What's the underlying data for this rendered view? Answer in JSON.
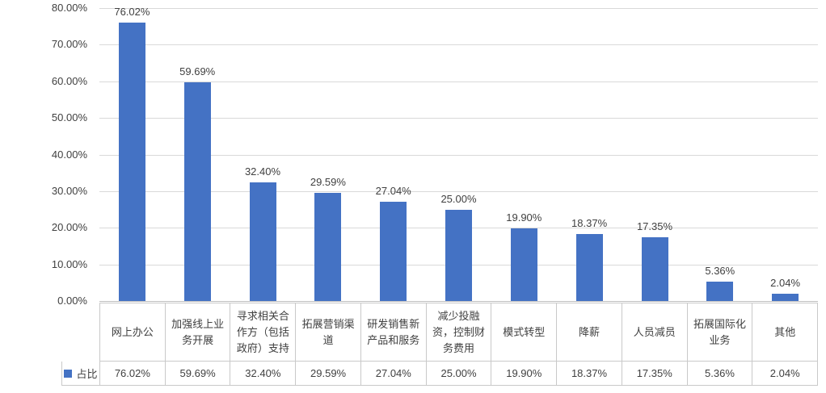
{
  "chart_data": {
    "type": "bar",
    "title": "",
    "xlabel": "",
    "ylabel": "",
    "categories": [
      "网上办公",
      "加强线上业务开展",
      "寻求相关合作方（包括政府）支持",
      "拓展营销渠道",
      "研发销售新产品和服务",
      "减少投融资，控制财务费用",
      "模式转型",
      "降薪",
      "人员减员",
      "拓展国际化业务",
      "其他"
    ],
    "series": [
      {
        "name": "占比",
        "values": [
          76.02,
          59.69,
          32.4,
          29.59,
          27.04,
          25.0,
          19.9,
          18.37,
          17.35,
          5.36,
          2.04
        ]
      }
    ],
    "data_labels": [
      "76.02%",
      "59.69%",
      "32.40%",
      "29.59%",
      "27.04%",
      "25.00%",
      "19.90%",
      "18.37%",
      "17.35%",
      "5.36%",
      "2.04%"
    ],
    "ylim": [
      0,
      80
    ],
    "ytick_step": 10,
    "ytick_labels": [
      "0.00%",
      "10.00%",
      "20.00%",
      "30.00%",
      "40.00%",
      "50.00%",
      "60.00%",
      "70.00%",
      "80.00%"
    ],
    "grid": true,
    "legend_position": "data-table-left",
    "data_table": {
      "legend_label": "占比",
      "values": [
        "76.02%",
        "59.69%",
        "32.40%",
        "29.59%",
        "27.04%",
        "25.00%",
        "19.90%",
        "18.37%",
        "17.35%",
        "5.36%",
        "2.04%"
      ]
    },
    "colors": {
      "bar": "#4472C4",
      "gridline": "#D9D9D9",
      "axis_line": "#BFBFBF",
      "table_border": "#C9C9C9",
      "text": "#404040"
    }
  }
}
